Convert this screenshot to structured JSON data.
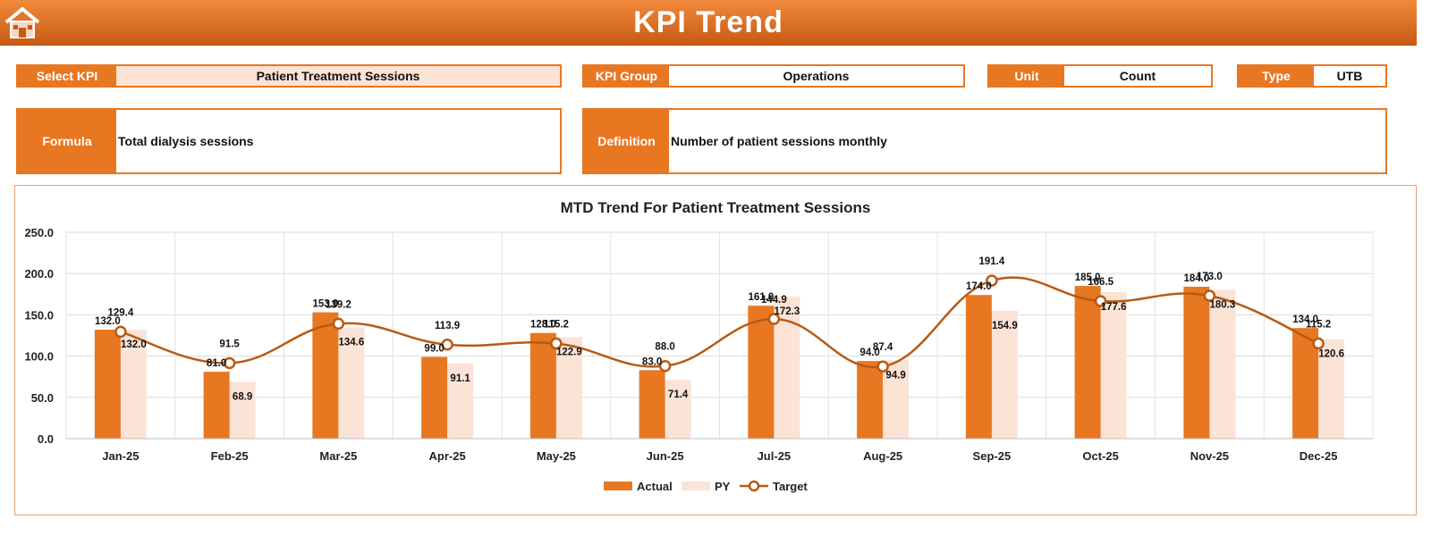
{
  "header": {
    "title": "KPI Trend",
    "home_icon": "home-icon"
  },
  "filters": {
    "select_kpi": {
      "label": "Select KPI",
      "value": "Patient Treatment Sessions"
    },
    "kpi_group": {
      "label": "KPI Group",
      "value": "Operations"
    },
    "unit": {
      "label": "Unit",
      "value": "Count"
    },
    "type": {
      "label": "Type",
      "value": "UTB"
    }
  },
  "info": {
    "formula": {
      "label": "Formula",
      "value": "Total dialysis sessions"
    },
    "definition": {
      "label": "Definition",
      "value": "Number of patient sessions monthly"
    }
  },
  "colors": {
    "accent": "#e87722",
    "actual": "#e87722",
    "py": "#fbe3d6",
    "target": "#b85a14"
  },
  "chart_data": {
    "type": "bar",
    "title": "MTD Trend For Patient Treatment Sessions",
    "xlabel": "",
    "ylabel": "",
    "categories": [
      "Jan-25",
      "Feb-25",
      "Mar-25",
      "Apr-25",
      "May-25",
      "Jun-25",
      "Jul-25",
      "Aug-25",
      "Sep-25",
      "Oct-25",
      "Nov-25",
      "Dec-25"
    ],
    "series": [
      {
        "name": "Actual",
        "type": "bar",
        "values": [
          132.0,
          81.0,
          153.0,
          99.0,
          128.0,
          83.0,
          161.0,
          94.0,
          174.0,
          185.0,
          184.0,
          134.0
        ]
      },
      {
        "name": "PY",
        "type": "bar",
        "values": [
          132.0,
          68.9,
          134.6,
          91.1,
          122.9,
          71.4,
          172.3,
          94.9,
          154.9,
          177.6,
          180.3,
          120.6
        ]
      },
      {
        "name": "Target",
        "type": "line",
        "values": [
          129.4,
          91.5,
          139.2,
          113.9,
          115.2,
          88.0,
          144.9,
          87.4,
          191.4,
          166.5,
          173.0,
          115.2
        ]
      }
    ],
    "ylim": [
      0,
      250
    ],
    "yticks": [
      "0.0",
      "50.0",
      "100.0",
      "150.0",
      "200.0",
      "250.0"
    ],
    "grid": true,
    "legend_position": "bottom"
  }
}
